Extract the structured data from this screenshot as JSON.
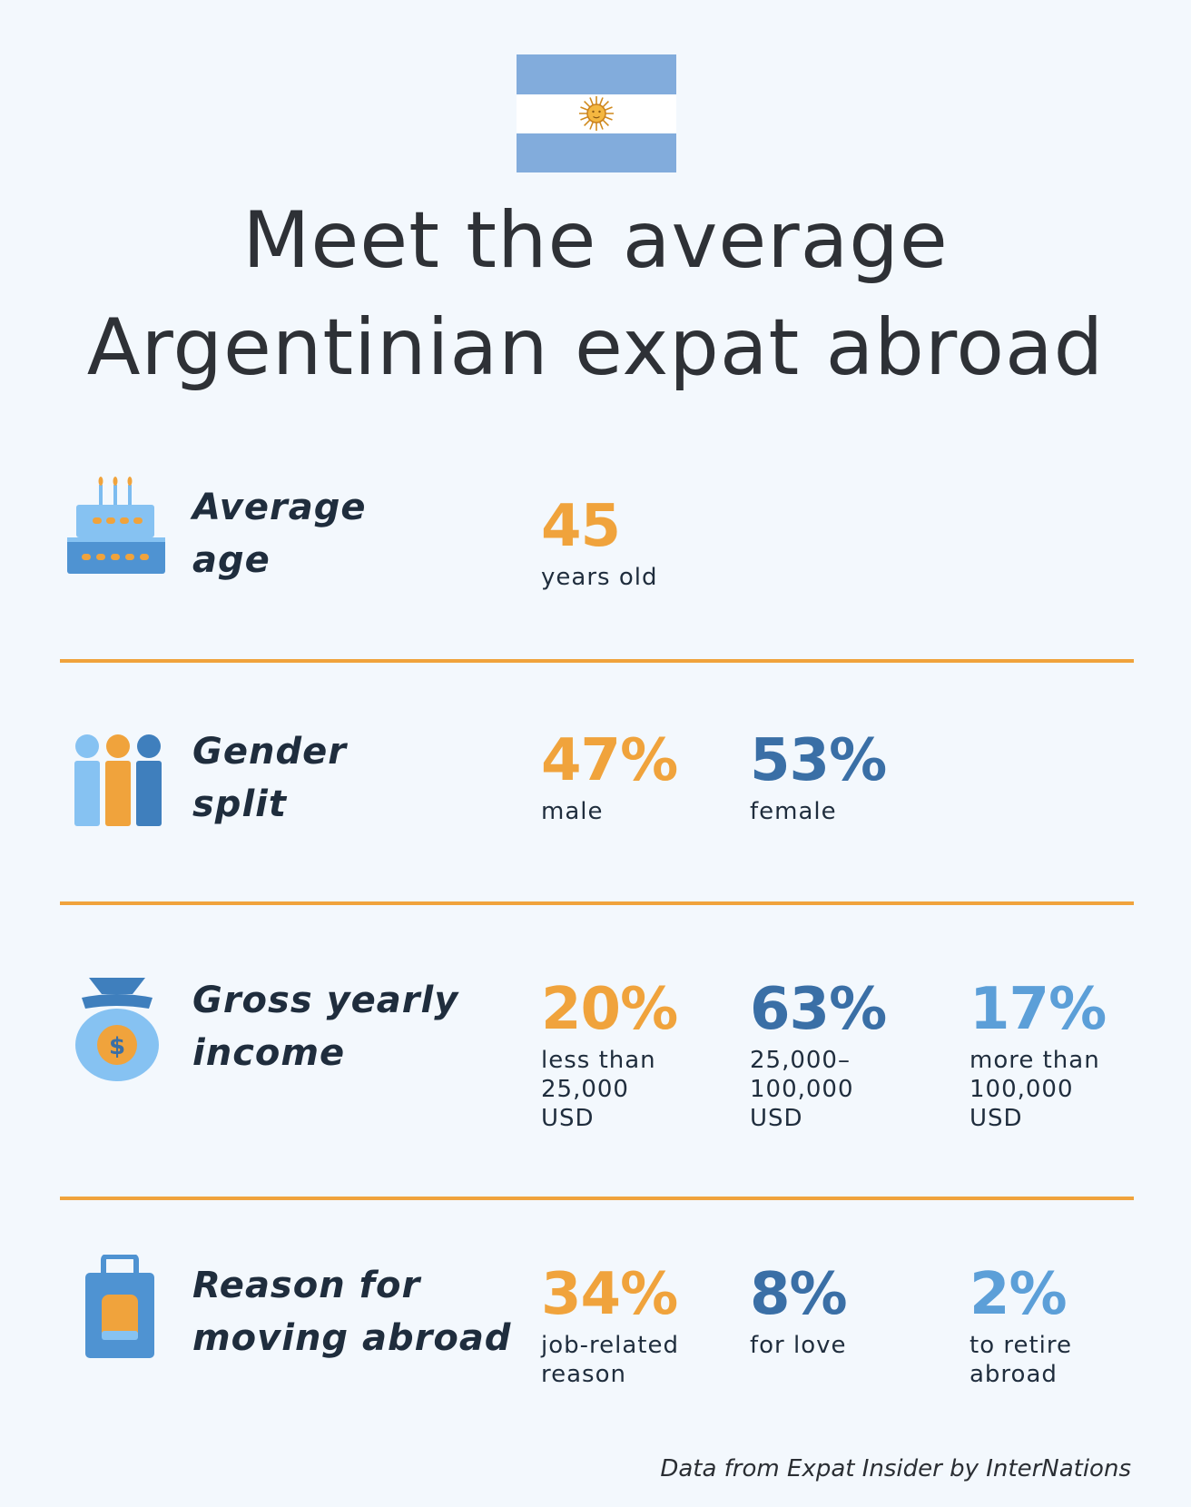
{
  "colors": {
    "orange": "#f0a33c",
    "dark_blue": "#3a6fa6",
    "light_blue": "#5c9fd8",
    "divider": "#f0a33c",
    "flag_blue": "#82acdc",
    "text": "#1f2d3d"
  },
  "title": {
    "line1": "Meet the average",
    "line2": "Argentinian expat abroad"
  },
  "sections": {
    "age": {
      "label_line1": "Average",
      "label_line2": "age",
      "icon": "birthday-cake-icon",
      "stats": [
        {
          "value": "45",
          "caption": "years old"
        }
      ]
    },
    "gender": {
      "label_line1": "Gender",
      "label_line2": "split",
      "icon": "people-icon",
      "stats": [
        {
          "value": "47%",
          "caption": "male"
        },
        {
          "value": "53%",
          "caption": "female"
        }
      ]
    },
    "income": {
      "label_line1": "Gross yearly",
      "label_line2": "income",
      "icon": "money-bag-icon",
      "stats": [
        {
          "value": "20%",
          "caption": "less than\n25,000\nUSD"
        },
        {
          "value": "63%",
          "caption": "25,000–\n100,000\nUSD"
        },
        {
          "value": "17%",
          "caption": "more than\n100,000\nUSD"
        }
      ]
    },
    "reason": {
      "label_line1": "Reason for",
      "label_line2": "moving abroad",
      "icon": "suitcase-icon",
      "stats": [
        {
          "value": "34%",
          "caption": "job-related\nreason"
        },
        {
          "value": "8%",
          "caption": "for love"
        },
        {
          "value": "2%",
          "caption": "to retire\nabroad"
        }
      ]
    }
  },
  "footer": "Data from Expat Insider by InterNations"
}
